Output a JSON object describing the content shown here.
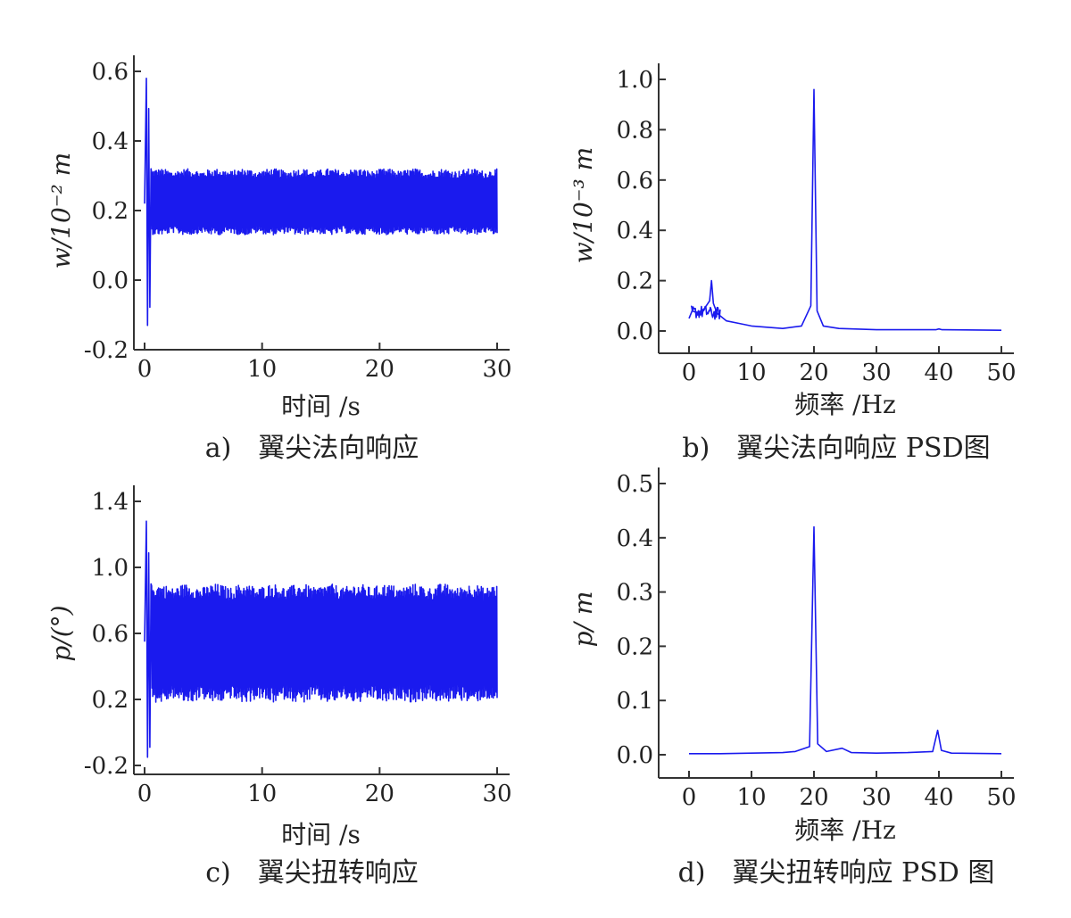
{
  "chart_data": [
    {
      "id": "a",
      "type": "line",
      "caption_label": "a)",
      "caption_text": "翼尖法向响应",
      "xlabel": "时间 /s",
      "ylabel": "w/10⁻² m",
      "xlim": [
        0,
        30
      ],
      "ylim": [
        -0.2,
        0.6
      ],
      "xticks": [
        "0",
        "10",
        "20",
        "30"
      ],
      "yticks": [
        "-0.2",
        "0.0",
        "0.2",
        "0.4",
        "0.6"
      ],
      "series": [
        {
          "color": "#1a1aee",
          "kind": "oscillation",
          "transient": {
            "t_start": 0.0,
            "t_end": 0.6,
            "max": 0.58,
            "min": -0.13
          },
          "steady": {
            "t_start": 0.6,
            "t_end": 30.0,
            "max": 0.32,
            "min": 0.13,
            "mean": 0.22
          }
        }
      ]
    },
    {
      "id": "b",
      "type": "line",
      "caption_label": "b)",
      "caption_text": "翼尖法向响应 PSD图",
      "xlabel": "频率 /Hz",
      "ylabel": "w/10⁻³ m",
      "xlim": [
        0,
        50
      ],
      "ylim": [
        0,
        1.0
      ],
      "xticks": [
        "0",
        "10",
        "20",
        "30",
        "40",
        "50"
      ],
      "yticks": [
        "0.0",
        "0.2",
        "0.4",
        "0.6",
        "0.8",
        "1.0"
      ],
      "series": [
        {
          "color": "#1a1aee",
          "kind": "spectrum",
          "points": [
            [
              0,
              0.05
            ],
            [
              0.5,
              0.08
            ],
            [
              1.5,
              0.07
            ],
            [
              2.5,
              0.09
            ],
            [
              3.3,
              0.12
            ],
            [
              3.6,
              0.2
            ],
            [
              3.9,
              0.11
            ],
            [
              4.5,
              0.07
            ],
            [
              6,
              0.04
            ],
            [
              8,
              0.03
            ],
            [
              10,
              0.02
            ],
            [
              15,
              0.01
            ],
            [
              18,
              0.02
            ],
            [
              19.5,
              0.1
            ],
            [
              20.0,
              0.96
            ],
            [
              20.5,
              0.08
            ],
            [
              21.5,
              0.02
            ],
            [
              24,
              0.01
            ],
            [
              30,
              0.005
            ],
            [
              39.5,
              0.005
            ],
            [
              40,
              0.008
            ],
            [
              40.5,
              0.005
            ],
            [
              50,
              0.003
            ]
          ]
        }
      ]
    },
    {
      "id": "c",
      "type": "line",
      "caption_label": "c)",
      "caption_text": "翼尖扭转响应",
      "xlabel": "时间 /s",
      "ylabel": "p/(°)",
      "xlim": [
        0,
        30
      ],
      "ylim": [
        -0.2,
        1.4
      ],
      "xticks": [
        "0",
        "10",
        "20",
        "30"
      ],
      "yticks": [
        "-0.2",
        "0.2",
        "0.6",
        "1.0",
        "1.4"
      ],
      "series": [
        {
          "color": "#1a1aee",
          "kind": "oscillation",
          "transient": {
            "t_start": 0.0,
            "t_end": 0.6,
            "max": 1.28,
            "min": -0.15
          },
          "steady": {
            "t_start": 0.6,
            "t_end": 30.0,
            "max": 0.9,
            "min": 0.18,
            "mean": 0.55
          }
        }
      ]
    },
    {
      "id": "d",
      "type": "line",
      "caption_label": "d)",
      "caption_text": "翼尖扭转响应 PSD 图",
      "xlabel": "频率 /Hz",
      "ylabel": "p/ m",
      "xlim": [
        0,
        50
      ],
      "ylim": [
        0,
        0.5
      ],
      "xticks": [
        "0",
        "10",
        "20",
        "30",
        "40",
        "50"
      ],
      "yticks": [
        "0.0",
        "0.1",
        "0.2",
        "0.3",
        "0.4",
        "0.5"
      ],
      "series": [
        {
          "color": "#1a1aee",
          "kind": "spectrum",
          "points": [
            [
              0,
              0.002
            ],
            [
              5,
              0.002
            ],
            [
              10,
              0.003
            ],
            [
              15,
              0.004
            ],
            [
              17,
              0.006
            ],
            [
              19.3,
              0.015
            ],
            [
              20.0,
              0.42
            ],
            [
              20.6,
              0.02
            ],
            [
              22,
              0.006
            ],
            [
              24.5,
              0.012
            ],
            [
              26,
              0.004
            ],
            [
              30,
              0.003
            ],
            [
              35,
              0.004
            ],
            [
              39.0,
              0.006
            ],
            [
              39.8,
              0.045
            ],
            [
              40.4,
              0.008
            ],
            [
              42,
              0.003
            ],
            [
              50,
              0.002
            ]
          ]
        }
      ]
    }
  ]
}
